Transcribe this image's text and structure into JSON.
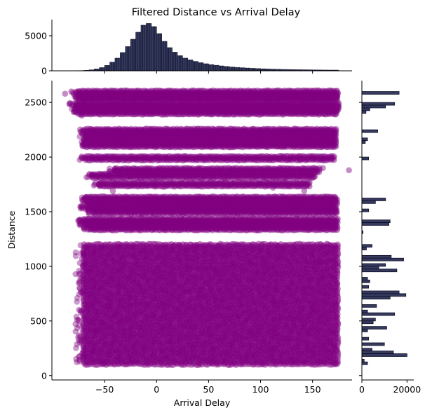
{
  "chart_data": {
    "type": "scatter",
    "title": "Filtered Distance vs Arrival Delay",
    "xlabel": "Arrival Delay",
    "ylabel": "Distance",
    "xlim": [
      -100,
      188
    ],
    "ylim": [
      -40,
      2700
    ],
    "x_ticks": [
      {
        "value": -50,
        "label": "−50"
      },
      {
        "value": 0,
        "label": "0"
      },
      {
        "value": 50,
        "label": "50"
      },
      {
        "value": 100,
        "label": "100"
      },
      {
        "value": 150,
        "label": "150"
      }
    ],
    "y_ticks": [
      {
        "value": 0,
        "label": "0"
      },
      {
        "value": 500,
        "label": "500"
      },
      {
        "value": 1000,
        "label": "1000"
      },
      {
        "value": 1500,
        "label": "1500"
      },
      {
        "value": 2000,
        "label": "2000"
      },
      {
        "value": 2500,
        "label": "2500"
      }
    ],
    "point_color": "#800080",
    "hist_color": "#363a5e",
    "scatter_bands": [
      {
        "y": 2590,
        "xmin": -75,
        "xmax": 175
      },
      {
        "y": 2560,
        "xmin": -72,
        "xmax": 175
      },
      {
        "y": 2540,
        "xmin": -74,
        "xmax": 175
      },
      {
        "y": 2480,
        "xmin": -78,
        "xmax": 175
      },
      {
        "y": 2450,
        "xmin": -76,
        "xmax": 175
      },
      {
        "y": 2410,
        "xmin": -74,
        "xmax": 175
      },
      {
        "y": 2240,
        "xmin": -68,
        "xmax": 174
      },
      {
        "y": 2200,
        "xmin": -68,
        "xmax": 174
      },
      {
        "y": 2150,
        "xmin": -68,
        "xmax": 173
      },
      {
        "y": 2110,
        "xmin": -68,
        "xmax": 174
      },
      {
        "y": 1990,
        "xmin": -68,
        "xmax": 172
      },
      {
        "y": 1880,
        "xmin": -40,
        "xmax": 158
      },
      {
        "y": 1830,
        "xmin": -62,
        "xmax": 152
      },
      {
        "y": 1750,
        "xmin": -55,
        "xmax": 148
      },
      {
        "y": 1620,
        "xmin": -68,
        "xmax": 174
      },
      {
        "y": 1590,
        "xmin": -65,
        "xmax": 174
      },
      {
        "y": 1540,
        "xmin": -68,
        "xmax": 174
      },
      {
        "y": 1500,
        "xmin": -60,
        "xmax": 174
      },
      {
        "y": 1420,
        "xmin": -70,
        "xmax": 174
      },
      {
        "y": 1390,
        "xmin": -68,
        "xmax": 174
      },
      {
        "y": 1350,
        "xmin": -65,
        "xmax": 174
      }
    ],
    "scatter_block": {
      "ymin": 100,
      "ymax": 1200,
      "xmin": -70,
      "xmax": 175
    },
    "scatter_outliers": [
      {
        "x": -88,
        "y": 2580
      },
      {
        "x": -82,
        "y": 2600
      },
      {
        "x": -77,
        "y": 2440
      },
      {
        "x": -72,
        "y": 2380
      },
      {
        "x": -70,
        "y": 1380
      },
      {
        "x": -65,
        "y": 1480
      },
      {
        "x": -70,
        "y": 1110
      },
      {
        "x": -68,
        "y": 1030
      },
      {
        "x": -65,
        "y": 950
      },
      {
        "x": -64,
        "y": 750
      },
      {
        "x": -62,
        "y": 660
      },
      {
        "x": -60,
        "y": 510
      },
      {
        "x": -58,
        "y": 410
      },
      {
        "x": -62,
        "y": 220
      },
      {
        "x": -50,
        "y": 110
      },
      {
        "x": -42,
        "y": 1690
      },
      {
        "x": 112,
        "y": 1720
      },
      {
        "x": 142,
        "y": 1690
      },
      {
        "x": 160,
        "y": 1900
      },
      {
        "x": 185,
        "y": 1880
      }
    ],
    "top_histogram": {
      "ylim": [
        0,
        7300
      ],
      "y_ticks": [
        {
          "value": 0,
          "label": "0"
        },
        {
          "value": 5000,
          "label": "5000"
        }
      ],
      "bins": [
        {
          "x": -85,
          "count": 5
        },
        {
          "x": -80,
          "count": 10
        },
        {
          "x": -75,
          "count": 25
        },
        {
          "x": -70,
          "count": 60
        },
        {
          "x": -65,
          "count": 130
        },
        {
          "x": -60,
          "count": 260
        },
        {
          "x": -55,
          "count": 450
        },
        {
          "x": -50,
          "count": 760
        },
        {
          "x": -45,
          "count": 1230
        },
        {
          "x": -40,
          "count": 1800
        },
        {
          "x": -35,
          "count": 2600
        },
        {
          "x": -30,
          "count": 3450
        },
        {
          "x": -25,
          "count": 4500
        },
        {
          "x": -20,
          "count": 5500
        },
        {
          "x": -15,
          "count": 6500
        },
        {
          "x": -10,
          "count": 6750
        },
        {
          "x": -5,
          "count": 6300
        },
        {
          "x": 0,
          "count": 5300
        },
        {
          "x": 5,
          "count": 4200
        },
        {
          "x": 10,
          "count": 3300
        },
        {
          "x": 15,
          "count": 2650
        },
        {
          "x": 20,
          "count": 2150
        },
        {
          "x": 25,
          "count": 1800
        },
        {
          "x": 30,
          "count": 1550
        },
        {
          "x": 35,
          "count": 1330
        },
        {
          "x": 40,
          "count": 1150
        },
        {
          "x": 45,
          "count": 1000
        },
        {
          "x": 50,
          "count": 880
        },
        {
          "x": 55,
          "count": 780
        },
        {
          "x": 60,
          "count": 690
        },
        {
          "x": 65,
          "count": 610
        },
        {
          "x": 70,
          "count": 540
        },
        {
          "x": 75,
          "count": 480
        },
        {
          "x": 80,
          "count": 430
        },
        {
          "x": 85,
          "count": 385
        },
        {
          "x": 90,
          "count": 345
        },
        {
          "x": 95,
          "count": 310
        },
        {
          "x": 100,
          "count": 280
        },
        {
          "x": 105,
          "count": 255
        },
        {
          "x": 110,
          "count": 230
        },
        {
          "x": 115,
          "count": 210
        },
        {
          "x": 120,
          "count": 190
        },
        {
          "x": 125,
          "count": 175
        },
        {
          "x": 130,
          "count": 160
        },
        {
          "x": 135,
          "count": 150
        },
        {
          "x": 140,
          "count": 140
        },
        {
          "x": 145,
          "count": 130
        },
        {
          "x": 150,
          "count": 120
        },
        {
          "x": 155,
          "count": 110
        },
        {
          "x": 160,
          "count": 100
        },
        {
          "x": 165,
          "count": 95
        },
        {
          "x": 170,
          "count": 90
        }
      ],
      "bin_width": 5
    },
    "right_histogram": {
      "xlim": [
        0,
        23000
      ],
      "x_ticks": [
        {
          "value": 0,
          "label": "0"
        },
        {
          "value": 20000,
          "label": "20000"
        }
      ],
      "bin_height": 25,
      "bins": [
        {
          "y": 2575,
          "count": 16500
        },
        {
          "y": 2475,
          "count": 14500
        },
        {
          "y": 2450,
          "count": 10500
        },
        {
          "y": 2425,
          "count": 3500
        },
        {
          "y": 2400,
          "count": 1800
        },
        {
          "y": 2225,
          "count": 7000
        },
        {
          "y": 2150,
          "count": 2500
        },
        {
          "y": 2125,
          "count": 1500
        },
        {
          "y": 1975,
          "count": 3000
        },
        {
          "y": 1600,
          "count": 10500
        },
        {
          "y": 1575,
          "count": 6000
        },
        {
          "y": 1500,
          "count": 3000
        },
        {
          "y": 1400,
          "count": 12500
        },
        {
          "y": 1375,
          "count": 12000
        },
        {
          "y": 1300,
          "count": 500
        },
        {
          "y": 1175,
          "count": 4500
        },
        {
          "y": 1150,
          "count": 2000
        },
        {
          "y": 1075,
          "count": 13000
        },
        {
          "y": 1050,
          "count": 18500
        },
        {
          "y": 1000,
          "count": 10500
        },
        {
          "y": 975,
          "count": 7500
        },
        {
          "y": 950,
          "count": 15500
        },
        {
          "y": 875,
          "count": 2500
        },
        {
          "y": 850,
          "count": 3500
        },
        {
          "y": 800,
          "count": 3000
        },
        {
          "y": 750,
          "count": 16500
        },
        {
          "y": 725,
          "count": 19500
        },
        {
          "y": 700,
          "count": 12500
        },
        {
          "y": 625,
          "count": 6500
        },
        {
          "y": 575,
          "count": 2500
        },
        {
          "y": 550,
          "count": 14500
        },
        {
          "y": 500,
          "count": 6000
        },
        {
          "y": 475,
          "count": 5000
        },
        {
          "y": 425,
          "count": 11000
        },
        {
          "y": 400,
          "count": 2500
        },
        {
          "y": 325,
          "count": 3000
        },
        {
          "y": 275,
          "count": 10000
        },
        {
          "y": 225,
          "count": 4500
        },
        {
          "y": 200,
          "count": 14000
        },
        {
          "y": 175,
          "count": 20000
        },
        {
          "y": 125,
          "count": 1000
        },
        {
          "y": 100,
          "count": 2500
        }
      ]
    }
  }
}
